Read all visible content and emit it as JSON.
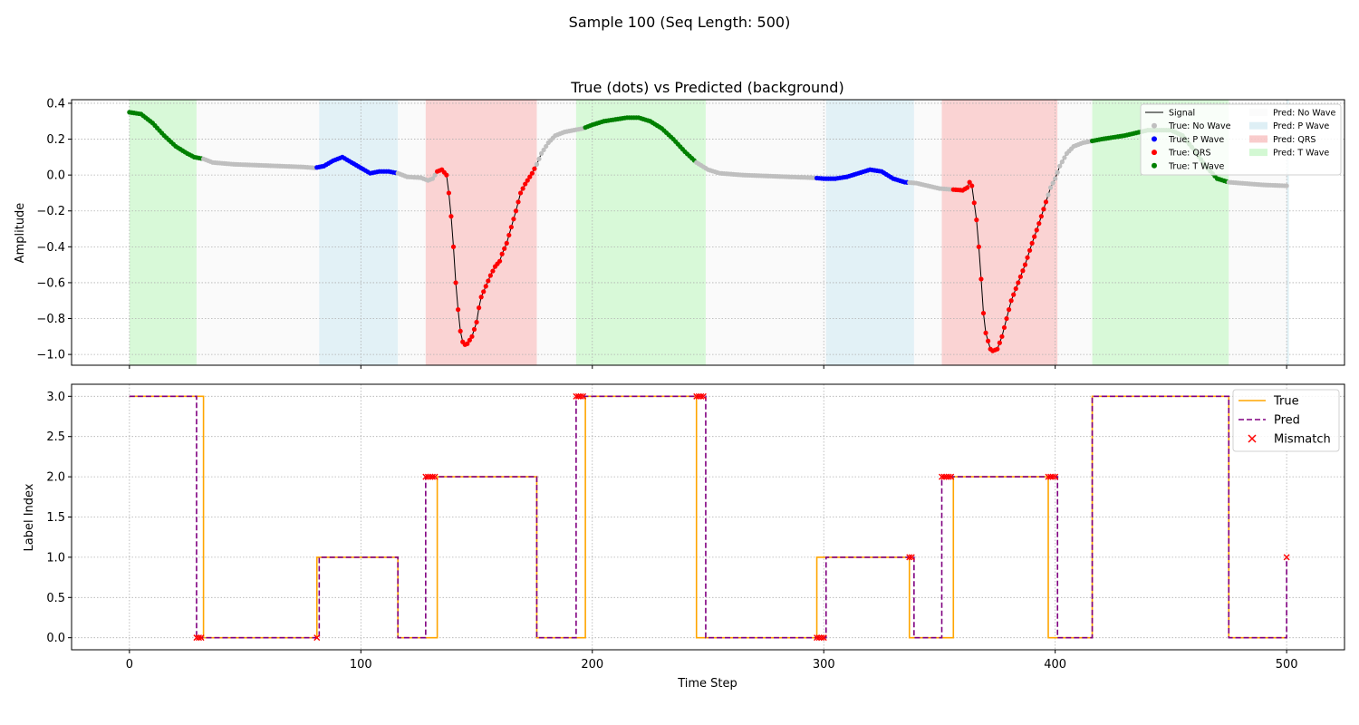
{
  "figure": {
    "suptitle": "Sample 100 (Seq Length: 500)"
  },
  "colors": {
    "no_wave_dot": "#bfbfbf",
    "p_wave_dot": "#0000ff",
    "qrs_dot": "#ff0000",
    "t_wave_dot": "#008000",
    "pred_no_wave_bg": "#f5f5f5",
    "pred_p_wave_bg": "#add8e6",
    "pred_qrs_bg": "#f08080",
    "pred_t_wave_bg": "#90ee90",
    "true_line": "#ffa500",
    "pred_line": "#800080",
    "mismatch": "#ff0000"
  },
  "chart_data": [
    {
      "type": "line",
      "title": "True (dots) vs Predicted (background)",
      "xlabel": "",
      "ylabel": "Amplitude",
      "xlim": [
        -25,
        525
      ],
      "ylim": [
        -1.06,
        0.42
      ],
      "x_ticks": [
        0,
        100,
        200,
        300,
        400,
        500
      ],
      "y_ticks": [
        -1.0,
        -0.8,
        -0.6,
        -0.4,
        -0.2,
        0.0,
        0.2,
        0.4
      ],
      "y_tick_labels": [
        "−1.0",
        "−0.8",
        "−0.6",
        "−0.4",
        "−0.2",
        "0.0",
        "0.2",
        "0.4"
      ],
      "grid": true,
      "legend_position": "top-right",
      "legend": [
        {
          "label": "Signal",
          "kind": "line",
          "color": "#000000"
        },
        {
          "label": "True: No Wave",
          "kind": "dot",
          "color": "#bfbfbf"
        },
        {
          "label": "True: P Wave",
          "kind": "dot",
          "color": "#0000ff"
        },
        {
          "label": "True: QRS",
          "kind": "dot",
          "color": "#ff0000"
        },
        {
          "label": "True: T Wave",
          "kind": "dot",
          "color": "#008000"
        },
        {
          "label": "Pred: No Wave",
          "kind": "patch",
          "color": "#f5f5f5"
        },
        {
          "label": "Pred: P Wave",
          "kind": "patch",
          "color": "#add8e6"
        },
        {
          "label": "Pred: QRS",
          "kind": "patch",
          "color": "#f08080"
        },
        {
          "label": "Pred: T Wave",
          "kind": "patch",
          "color": "#90ee90"
        }
      ],
      "signal_keypoints": [
        [
          0,
          0.35
        ],
        [
          5,
          0.34
        ],
        [
          10,
          0.29
        ],
        [
          15,
          0.22
        ],
        [
          20,
          0.16
        ],
        [
          25,
          0.12
        ],
        [
          28,
          0.1
        ],
        [
          32,
          0.09
        ],
        [
          36,
          0.07
        ],
        [
          45,
          0.06
        ],
        [
          55,
          0.055
        ],
        [
          65,
          0.05
        ],
        [
          75,
          0.045
        ],
        [
          80,
          0.04
        ],
        [
          84,
          0.05
        ],
        [
          88,
          0.08
        ],
        [
          92,
          0.1
        ],
        [
          96,
          0.07
        ],
        [
          100,
          0.04
        ],
        [
          104,
          0.01
        ],
        [
          108,
          0.02
        ],
        [
          112,
          0.02
        ],
        [
          116,
          0.01
        ],
        [
          120,
          -0.01
        ],
        [
          126,
          -0.015
        ],
        [
          129,
          -0.03
        ],
        [
          131,
          -0.02
        ],
        [
          133,
          0.02
        ],
        [
          135,
          0.03
        ],
        [
          137,
          0.0
        ],
        [
          138,
          -0.1
        ],
        [
          139,
          -0.23
        ],
        [
          140,
          -0.4
        ],
        [
          141,
          -0.6
        ],
        [
          142,
          -0.75
        ],
        [
          143,
          -0.87
        ],
        [
          144,
          -0.93
        ],
        [
          145,
          -0.945
        ],
        [
          146,
          -0.94
        ],
        [
          148,
          -0.9
        ],
        [
          150,
          -0.82
        ],
        [
          151,
          -0.74
        ],
        [
          152,
          -0.68
        ],
        [
          154,
          -0.62
        ],
        [
          156,
          -0.56
        ],
        [
          158,
          -0.51
        ],
        [
          160,
          -0.48
        ],
        [
          161,
          -0.44
        ],
        [
          163,
          -0.38
        ],
        [
          165,
          -0.29
        ],
        [
          167,
          -0.2
        ],
        [
          169,
          -0.1
        ],
        [
          171,
          -0.05
        ],
        [
          174,
          0.01
        ],
        [
          176,
          0.06
        ],
        [
          178,
          0.12
        ],
        [
          181,
          0.18
        ],
        [
          184,
          0.22
        ],
        [
          188,
          0.24
        ],
        [
          192,
          0.25
        ],
        [
          196,
          0.26
        ],
        [
          200,
          0.28
        ],
        [
          205,
          0.3
        ],
        [
          210,
          0.31
        ],
        [
          215,
          0.32
        ],
        [
          220,
          0.32
        ],
        [
          225,
          0.3
        ],
        [
          230,
          0.26
        ],
        [
          235,
          0.2
        ],
        [
          240,
          0.13
        ],
        [
          245,
          0.07
        ],
        [
          250,
          0.03
        ],
        [
          255,
          0.01
        ],
        [
          265,
          0.0
        ],
        [
          275,
          -0.005
        ],
        [
          285,
          -0.01
        ],
        [
          295,
          -0.015
        ],
        [
          300,
          -0.02
        ],
        [
          305,
          -0.02
        ],
        [
          310,
          -0.01
        ],
        [
          315,
          0.01
        ],
        [
          320,
          0.03
        ],
        [
          325,
          0.02
        ],
        [
          330,
          -0.02
        ],
        [
          335,
          -0.04
        ],
        [
          340,
          -0.045
        ],
        [
          345,
          -0.06
        ],
        [
          350,
          -0.075
        ],
        [
          355,
          -0.08
        ],
        [
          360,
          -0.085
        ],
        [
          362,
          -0.07
        ],
        [
          363,
          -0.04
        ],
        [
          364,
          -0.06
        ],
        [
          366,
          -0.25
        ],
        [
          367,
          -0.4
        ],
        [
          368,
          -0.58
        ],
        [
          369,
          -0.77
        ],
        [
          370,
          -0.88
        ],
        [
          372,
          -0.97
        ],
        [
          373,
          -0.98
        ],
        [
          375,
          -0.97
        ],
        [
          377,
          -0.9
        ],
        [
          379,
          -0.8
        ],
        [
          381,
          -0.7
        ],
        [
          384,
          -0.6
        ],
        [
          387,
          -0.5
        ],
        [
          390,
          -0.38
        ],
        [
          393,
          -0.27
        ],
        [
          396,
          -0.15
        ],
        [
          398,
          -0.07
        ],
        [
          400,
          -0.02
        ],
        [
          402,
          0.05
        ],
        [
          405,
          0.12
        ],
        [
          408,
          0.16
        ],
        [
          412,
          0.18
        ],
        [
          416,
          0.19
        ],
        [
          420,
          0.2
        ],
        [
          430,
          0.22
        ],
        [
          440,
          0.25
        ],
        [
          450,
          0.25
        ],
        [
          455,
          0.22
        ],
        [
          460,
          0.14
        ],
        [
          465,
          0.05
        ],
        [
          470,
          -0.02
        ],
        [
          475,
          -0.04
        ],
        [
          480,
          -0.045
        ],
        [
          490,
          -0.055
        ],
        [
          500,
          -0.06
        ]
      ],
      "true_segments": [
        {
          "start": 0,
          "end": 31,
          "label": "T Wave"
        },
        {
          "start": 32,
          "end": 80,
          "label": "No Wave"
        },
        {
          "start": 81,
          "end": 115,
          "label": "P Wave"
        },
        {
          "start": 116,
          "end": 132,
          "label": "No Wave"
        },
        {
          "start": 133,
          "end": 175,
          "label": "QRS"
        },
        {
          "start": 176,
          "end": 196,
          "label": "No Wave"
        },
        {
          "start": 197,
          "end": 244,
          "label": "T Wave"
        },
        {
          "start": 245,
          "end": 296,
          "label": "No Wave"
        },
        {
          "start": 297,
          "end": 336,
          "label": "P Wave"
        },
        {
          "start": 337,
          "end": 355,
          "label": "No Wave"
        },
        {
          "start": 356,
          "end": 396,
          "label": "QRS"
        },
        {
          "start": 397,
          "end": 415,
          "label": "No Wave"
        },
        {
          "start": 416,
          "end": 474,
          "label": "T Wave"
        },
        {
          "start": 475,
          "end": 500,
          "label": "No Wave"
        }
      ],
      "pred_segments": [
        {
          "start": 0,
          "end": 28,
          "label": "T Wave"
        },
        {
          "start": 29,
          "end": 81,
          "label": "No Wave"
        },
        {
          "start": 82,
          "end": 115,
          "label": "P Wave"
        },
        {
          "start": 116,
          "end": 127,
          "label": "No Wave"
        },
        {
          "start": 128,
          "end": 175,
          "label": "QRS"
        },
        {
          "start": 176,
          "end": 192,
          "label": "No Wave"
        },
        {
          "start": 193,
          "end": 248,
          "label": "T Wave"
        },
        {
          "start": 249,
          "end": 300,
          "label": "No Wave"
        },
        {
          "start": 301,
          "end": 338,
          "label": "P Wave"
        },
        {
          "start": 339,
          "end": 350,
          "label": "No Wave"
        },
        {
          "start": 351,
          "end": 400,
          "label": "QRS"
        },
        {
          "start": 401,
          "end": 415,
          "label": "No Wave"
        },
        {
          "start": 416,
          "end": 474,
          "label": "T Wave"
        },
        {
          "start": 475,
          "end": 499,
          "label": "No Wave"
        },
        {
          "start": 500,
          "end": 500,
          "label": "P Wave"
        }
      ]
    },
    {
      "type": "line",
      "title": "",
      "xlabel": "Time Step",
      "ylabel": "Label Index",
      "xlim": [
        -25,
        525
      ],
      "ylim": [
        -0.15,
        3.15
      ],
      "x_ticks": [
        0,
        100,
        200,
        300,
        400,
        500
      ],
      "y_ticks": [
        0.0,
        0.5,
        1.0,
        1.5,
        2.0,
        2.5,
        3.0
      ],
      "y_tick_labels": [
        "0.0",
        "0.5",
        "1.0",
        "1.5",
        "2.0",
        "2.5",
        "3.0"
      ],
      "grid": true,
      "legend_position": "top-right",
      "label_index": {
        "No Wave": 0,
        "P Wave": 1,
        "QRS": 2,
        "T Wave": 3
      },
      "series": [
        {
          "name": "True",
          "style": "solid",
          "color": "#ffa500",
          "source": "true_segments"
        },
        {
          "name": "Pred",
          "style": "dashed",
          "color": "#800080",
          "source": "pred_segments"
        },
        {
          "name": "Mismatch",
          "style": "markers",
          "color": "#ff0000"
        }
      ]
    }
  ]
}
